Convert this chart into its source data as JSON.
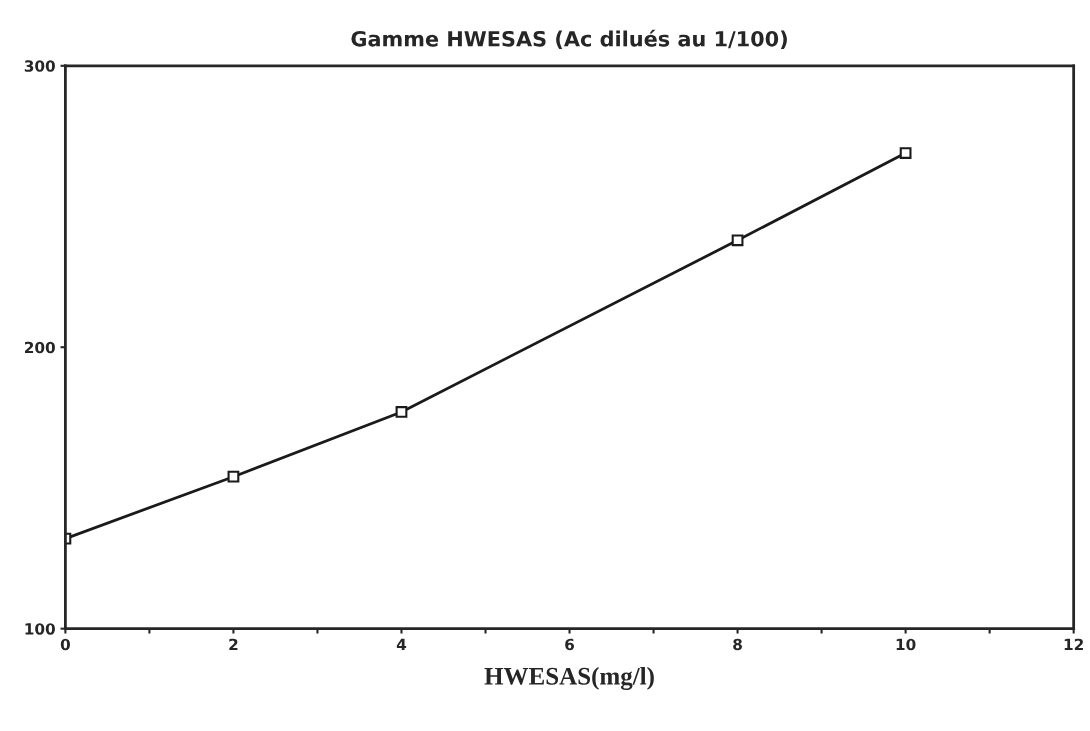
{
  "chart_data": {
    "type": "line",
    "title": "Gamme HWESAS (Ac dilués au 1/100)",
    "xlabel": "HWESAS(mg/l)",
    "x": [
      0,
      2,
      4,
      8,
      10
    ],
    "series": [
      {
        "color": "#1a1a1a",
        "values": [
          132,
          154,
          177,
          238,
          269
        ]
      }
    ],
    "marker": "square",
    "line_style": "solid",
    "grid": false,
    "legend": false,
    "xlim": [
      0,
      12
    ],
    "ylim": [
      100,
      300
    ],
    "xticks": [
      0,
      {
        "value": 1,
        "label": null
      },
      2,
      {
        "value": 3,
        "label": null
      },
      4,
      {
        "value": 5,
        "label": null
      },
      6,
      {
        "value": 7,
        "label": null
      },
      8,
      {
        "value": 9,
        "label": null
      },
      10,
      {
        "value": 11,
        "label": null
      },
      12
    ],
    "yticks": [
      100,
      200,
      300
    ]
  }
}
